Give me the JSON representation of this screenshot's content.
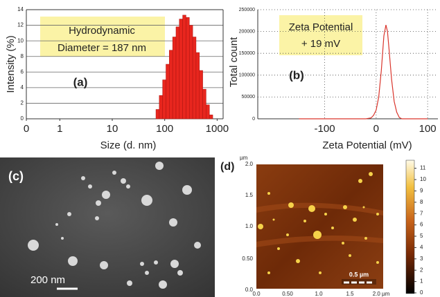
{
  "chart_data": [
    {
      "type": "histogram",
      "panel_label": "(a)",
      "ylabel": "Intensity (%)",
      "xlabel": "Size (d. nm)",
      "annotations": [
        "Hydrodynamic",
        "Diameter = 187 nm"
      ],
      "bins": [
        68.06,
        78.82,
        91.28,
        105.7,
        122.4,
        141.8,
        164.2,
        190.1,
        220.2,
        255.0,
        295.3,
        342.0,
        396.1,
        458.7,
        531.2,
        615.1,
        712.4,
        825.0
      ],
      "values": [
        1.2,
        3.0,
        5.0,
        7.0,
        8.8,
        10.5,
        11.8,
        12.8,
        13.3,
        13.0,
        12.0,
        10.5,
        8.5,
        6.2,
        3.8,
        1.8,
        0.5
      ],
      "color": "#e8261e",
      "log_x": true,
      "xlim": [
        0.23,
        1300
      ],
      "xticks": [
        {
          "value": 0.23,
          "label": "0"
        },
        1,
        10,
        100,
        1000
      ],
      "ylim": [
        0,
        14
      ],
      "yticks": [
        0,
        2,
        4,
        6,
        8,
        10,
        12,
        14
      ],
      "grid": true
    },
    {
      "type": "line",
      "panel_label": "(b)",
      "ylabel": "Total count",
      "xlabel": "Zeta Potential (mV)",
      "annotations": [
        "Zeta Potential",
        "+ 19 mV"
      ],
      "x": [
        -150,
        -50,
        -20,
        -10,
        -5,
        0,
        5,
        10,
        15,
        19,
        22,
        25,
        30,
        35,
        40,
        45,
        50,
        100
      ],
      "values": [
        0,
        0,
        0,
        2000,
        8000,
        20000,
        50000,
        110000,
        190000,
        215000,
        200000,
        160000,
        90000,
        40000,
        15000,
        3000,
        0,
        0
      ],
      "color": "#d9342b",
      "xlim": [
        -230,
        120
      ],
      "xticks": [
        -100,
        0,
        100
      ],
      "ylim": [
        0,
        250000
      ],
      "yticks": [
        0,
        50000,
        100000,
        150000,
        200000,
        250000
      ],
      "grid": true
    }
  ],
  "images": {
    "c": {
      "label": "(c)",
      "scale_bar": "200 nm"
    },
    "d": {
      "label": "(d)",
      "unit": "µm",
      "yticks": [
        "0.0",
        "0.50",
        "1.0",
        "1.5",
        "2.0"
      ],
      "xticks": [
        "0.0",
        "0.50",
        "1.0",
        "1.5",
        "2.0 µm"
      ],
      "scale_bar": "0.5 µm",
      "colorbar_ticks": [
        "0",
        "1",
        "2",
        "3",
        "4",
        "5",
        "6",
        "7",
        "8",
        "9",
        "10",
        "11"
      ]
    }
  }
}
